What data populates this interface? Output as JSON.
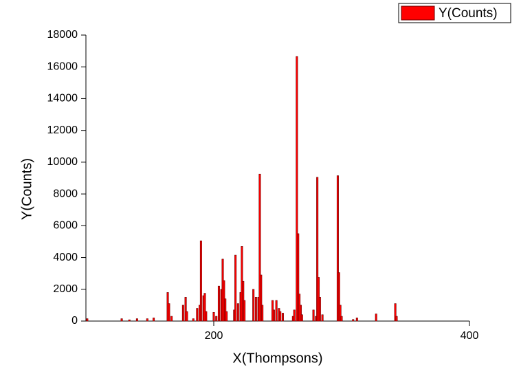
{
  "chart_data": {
    "type": "bar",
    "x_label": "X(Thompsons)",
    "y_label": "Y(Counts)",
    "x": [
      101,
      128,
      134,
      140,
      148,
      153,
      164,
      165,
      167,
      176,
      178,
      179,
      184,
      187,
      189,
      190,
      192,
      193,
      194,
      200,
      202,
      204,
      206,
      207,
      208,
      209,
      210,
      216,
      217,
      219,
      221,
      222,
      223,
      224,
      231,
      233,
      235,
      236,
      237,
      238,
      246,
      247,
      249,
      251,
      252,
      254,
      262,
      263,
      265,
      266,
      267,
      268,
      269,
      278,
      280,
      281,
      282,
      283,
      285,
      297,
      298,
      299,
      300,
      309,
      312,
      327,
      342,
      343
    ],
    "series": [
      {
        "name": "Y(Counts)",
        "color": "#ff0000",
        "values": [
          150,
          150,
          80,
          150,
          150,
          200,
          1800,
          1100,
          300,
          1000,
          1500,
          600,
          150,
          800,
          1000,
          5050,
          1600,
          1750,
          600,
          550,
          300,
          2200,
          2000,
          3900,
          2550,
          1400,
          600,
          700,
          4150,
          1100,
          1800,
          4700,
          2500,
          1300,
          2000,
          1500,
          1500,
          9250,
          2900,
          1000,
          1300,
          700,
          1300,
          800,
          600,
          500,
          300,
          700,
          16650,
          5500,
          1700,
          1000,
          400,
          700,
          300,
          9050,
          2750,
          1500,
          400,
          9150,
          3050,
          1000,
          300,
          100,
          200,
          450,
          1100,
          300
        ]
      }
    ],
    "xlim": [
      100,
      400
    ],
    "xticks": [
      200,
      400
    ],
    "ylim": [
      0,
      18000
    ],
    "yticks": [
      0,
      2000,
      4000,
      6000,
      8000,
      10000,
      12000,
      14000,
      16000,
      18000
    ],
    "legend": "top-right"
  }
}
